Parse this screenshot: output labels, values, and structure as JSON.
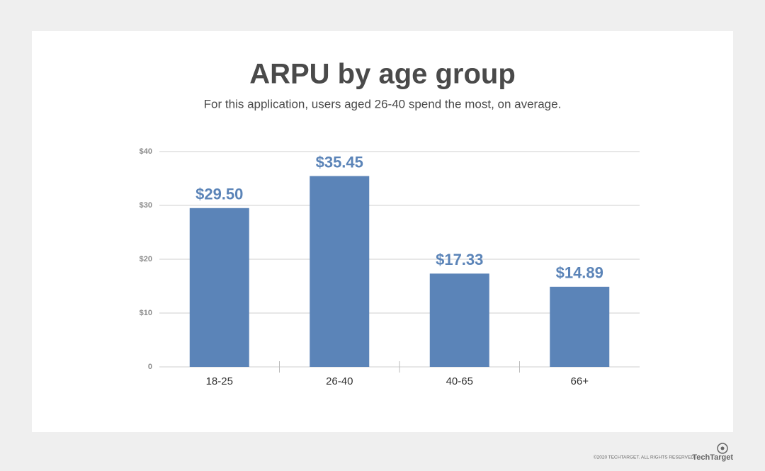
{
  "chart_data": {
    "type": "bar",
    "title": "ARPU by age group",
    "subtitle": "For this application, users aged 26-40 spend the most, on average.",
    "categories": [
      "18-25",
      "26-40",
      "40-65",
      "66+"
    ],
    "values": [
      29.5,
      35.45,
      17.33,
      14.89
    ],
    "value_labels": [
      "$29.50",
      "$35.45",
      "$17.33",
      "$14.89"
    ],
    "color": "#5b84b8",
    "ylim": [
      0,
      40
    ],
    "yticks": [
      0,
      {
        "value": 10,
        "label": "$10"
      },
      {
        "value": 20,
        "label": "$20"
      },
      {
        "value": 30,
        "label": "$30"
      },
      {
        "value": 40,
        "label": "$40"
      }
    ],
    "grid": true
  },
  "footer": {
    "copyright": "©2020 TECHTARGET. ALL RIGHTS RESERVED",
    "logo": "TechTarget"
  }
}
